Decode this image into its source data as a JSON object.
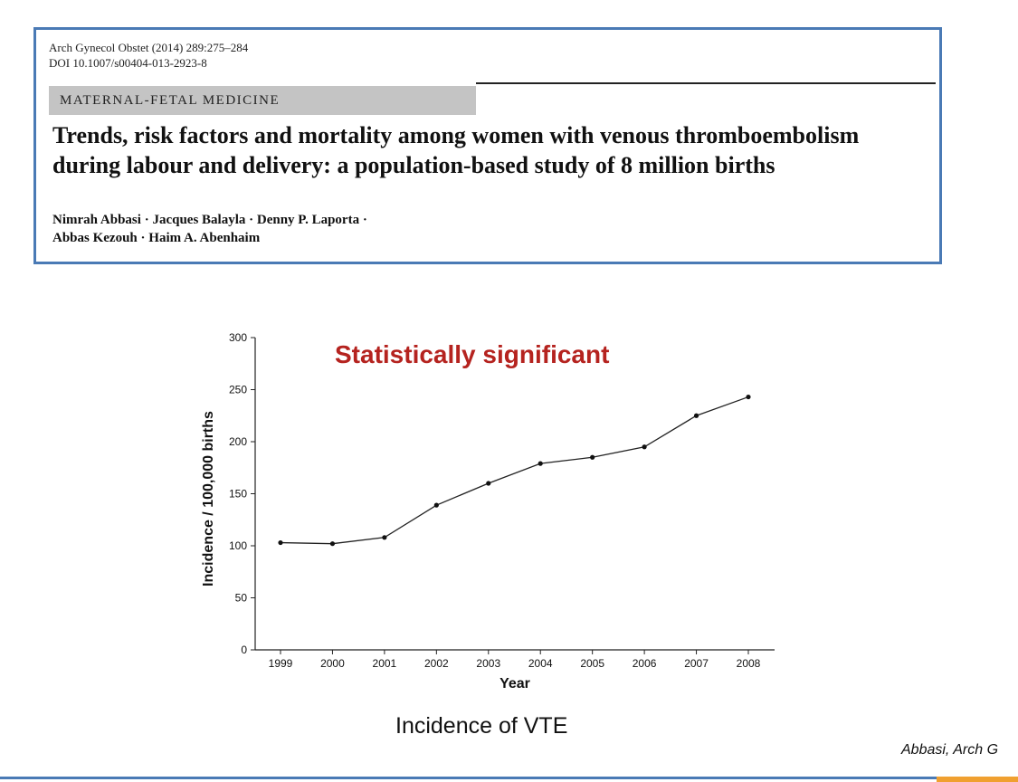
{
  "paper": {
    "journal_ref": "Arch Gynecol Obstet (2014) 289:275–284",
    "doi": "DOI 10.1007/s00404-013-2923-8",
    "section": "MATERNAL-FETAL MEDICINE",
    "title": "Trends, risk factors and mortality among women with venous thromboembolism during labour and delivery: a population-based study of 8 million births",
    "authors_line1": "Nimrah Abbasi · Jacques Balayla · Denny P. Laporta ·",
    "authors_line2": "Abbas Kezouh · Haim A. Abenhaim"
  },
  "annotation": "Statistically significant",
  "caption": "Incidence of VTE",
  "citation": "Abbasi,  Arch G",
  "colors": {
    "border": "#4a7ab5",
    "annotation": "#b5231f",
    "section_band": "#c4c4c4",
    "footer_accent": "#f0a030"
  },
  "chart_data": {
    "type": "line",
    "title": "",
    "xlabel": "Year",
    "ylabel": "Incidence / 100,000 births",
    "categories": [
      "1999",
      "2000",
      "2001",
      "2002",
      "2003",
      "2004",
      "2005",
      "2006",
      "2007",
      "2008"
    ],
    "series": [
      {
        "name": "VTE incidence",
        "values": [
          103,
          102,
          108,
          139,
          160,
          179,
          185,
          195,
          225,
          243
        ]
      }
    ],
    "ylim": [
      0,
      300
    ],
    "yticks": [
      0,
      50,
      100,
      150,
      200,
      250,
      300
    ],
    "grid": false
  }
}
